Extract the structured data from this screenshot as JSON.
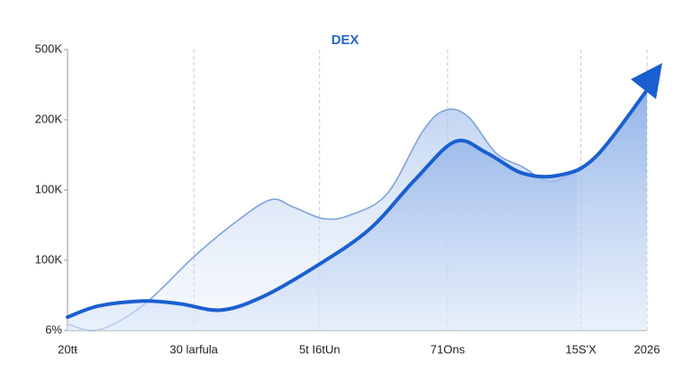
{
  "chart_data": {
    "type": "area",
    "title": "DEX",
    "xlim": [
      0,
      100
    ],
    "xticks": [
      {
        "value": 0,
        "label": "20tŧ"
      },
      {
        "value": 21.8,
        "label": "30 larfula"
      },
      {
        "value": 43.5,
        "label": "5t I6tUn"
      },
      {
        "value": 65.6,
        "label": "71Ons"
      },
      {
        "value": 88.6,
        "label": "15S'X"
      },
      {
        "value": 100,
        "label": "2026"
      }
    ],
    "ylim": [
      0,
      4
    ],
    "yticks": [
      {
        "value": 0,
        "label": "6%"
      },
      {
        "value": 1,
        "label": "100K"
      },
      {
        "value": 2,
        "label": "100K"
      },
      {
        "value": 3,
        "label": "200K"
      },
      {
        "value": 4,
        "label": "500K"
      }
    ],
    "grid": true,
    "series": [
      {
        "color": "#7fa3dc",
        "x": [
          0,
          5.4,
          13.2,
          21.8,
          28.8,
          35.0,
          38.9,
          44.3,
          49.0,
          55.2,
          61.4,
          65.3,
          69.2,
          73.9,
          78.5,
          83.2,
          87.9
        ],
        "values": [
          0.09,
          0.01,
          0.37,
          1.05,
          1.53,
          1.86,
          1.76,
          1.59,
          1.65,
          1.95,
          2.85,
          3.14,
          3.04,
          2.53,
          2.33,
          2.12,
          2.27
        ]
      },
      {
        "color": "#1a5fd0",
        "x": [
          0,
          5.4,
          13.2,
          19.4,
          26.4,
          33.4,
          42.8,
          52.1,
          59.9,
          66.9,
          72.3,
          78.5,
          84.8,
          91.0,
          100
        ],
        "values": [
          0.19,
          0.35,
          0.42,
          0.38,
          0.29,
          0.47,
          0.91,
          1.44,
          2.14,
          2.69,
          2.53,
          2.24,
          2.21,
          2.46,
          3.42
        ]
      }
    ]
  }
}
